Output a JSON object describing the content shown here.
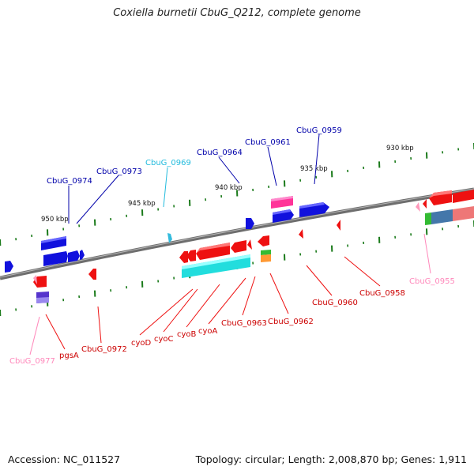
{
  "title": "Coxiella burnetii CbuG_Q212, complete genome",
  "footer": {
    "accession": "Accession: NC_011527",
    "summary": "Topology: circular; Length: 2,008,870 bp; Genes: 1,911"
  },
  "scale_labels": [
    "930 kbp",
    "935 kbp",
    "940 kbp",
    "945 kbp",
    "950 kbp"
  ],
  "colors": {
    "backbone": "#7a7a7a",
    "tick": "#1a7a1a",
    "red": "#ee1111",
    "blue": "#1111dd",
    "cyan": "#22dddd",
    "pink": "#ff99bb",
    "magenta": "#ff3399",
    "green": "#33bb33",
    "orange": "#ff9933",
    "steel": "#4477aa",
    "purple": "#5533cc"
  },
  "gene_labels": [
    "CbuG_0959",
    "CbuG_0961",
    "CbuG_0964",
    "CbuG_0969",
    "CbuG_0973",
    "CbuG_0974",
    "CbuG_0955",
    "CbuG_0958",
    "CbuG_0960",
    "CbuG_0962",
    "CbuG_0963",
    "cyoA",
    "cyoB",
    "cyoC",
    "cyoD",
    "CbuG_0972",
    "pgsA",
    "CbuG_0977"
  ]
}
